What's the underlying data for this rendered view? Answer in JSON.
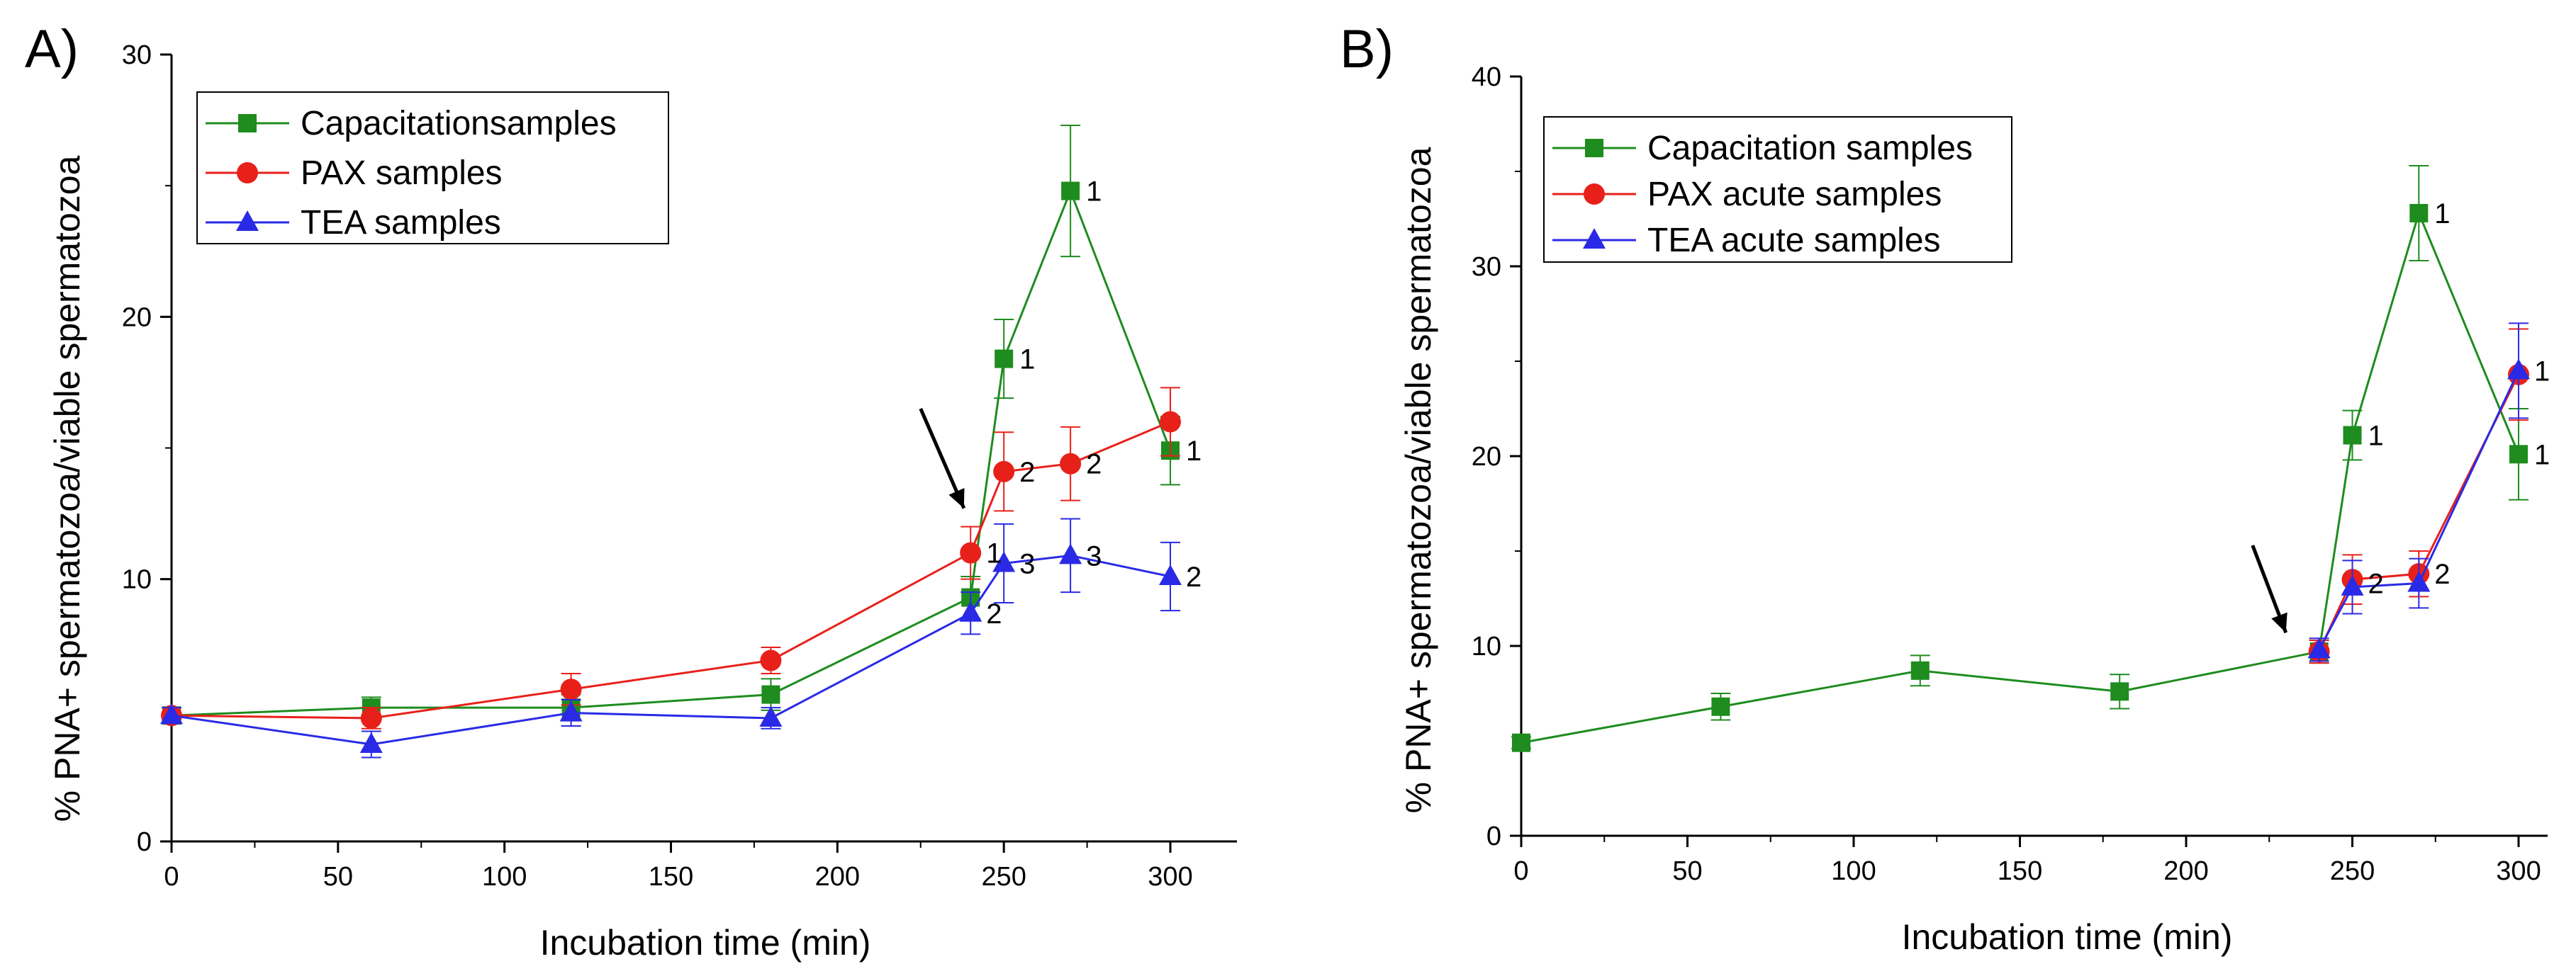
{
  "chart_data": [
    {
      "panel_label": "A)",
      "type": "line",
      "title": "",
      "xlabel": "Incubation time (min)",
      "ylabel": "%  PNA+ spermatozoa/viable spermatozoa",
      "xlim": [
        0,
        320
      ],
      "ylim": [
        0,
        30
      ],
      "xticks": [
        0,
        50,
        100,
        150,
        200,
        250,
        300
      ],
      "yticks": [
        0,
        10,
        20,
        30
      ],
      "legend_position": "top-left",
      "series": [
        {
          "name": "Capacitationsamples",
          "color": "#1e8c1e",
          "marker": "square",
          "x": [
            0,
            60,
            120,
            180,
            240,
            250,
            270,
            300
          ],
          "y": [
            4.8,
            5.1,
            5.1,
            5.6,
            9.3,
            18.4,
            24.8,
            14.9
          ],
          "err": [
            0.3,
            0.4,
            0.5,
            0.6,
            0.8,
            1.5,
            2.5,
            1.3
          ]
        },
        {
          "name": "PAX samples",
          "color": "#e8201a",
          "marker": "circle",
          "x": [
            0,
            60,
            120,
            180,
            240,
            250,
            270,
            300
          ],
          "y": [
            4.8,
            4.7,
            5.8,
            6.9,
            11.0,
            14.1,
            14.4,
            16.0
          ],
          "err": [
            0.3,
            0.4,
            0.6,
            0.5,
            1.0,
            1.5,
            1.4,
            1.3
          ]
        },
        {
          "name": "TEA samples",
          "color": "#2a2ae6",
          "marker": "triangle",
          "x": [
            0,
            60,
            120,
            180,
            240,
            250,
            270,
            300
          ],
          "y": [
            4.8,
            3.7,
            4.9,
            4.7,
            8.7,
            10.6,
            10.9,
            10.1
          ],
          "err": [
            0.3,
            0.5,
            0.5,
            0.4,
            0.8,
            1.5,
            1.4,
            1.3
          ]
        }
      ],
      "annotations": [
        {
          "text": "1",
          "x": 270,
          "y": 24.8
        },
        {
          "text": "1",
          "x": 250,
          "y": 18.4
        },
        {
          "text": "1",
          "x": 300,
          "y": 14.9
        },
        {
          "text": "2",
          "x": 250,
          "y": 14.1
        },
        {
          "text": "2",
          "x": 270,
          "y": 14.4
        },
        {
          "text": "1",
          "x": 240,
          "y": 11.0
        },
        {
          "text": "3",
          "x": 250,
          "y": 10.6
        },
        {
          "text": "3",
          "x": 270,
          "y": 10.9
        },
        {
          "text": "2",
          "x": 300,
          "y": 10.1
        },
        {
          "text": "2",
          "x": 240,
          "y": 8.7
        }
      ],
      "arrow": {
        "from": [
          225,
          16.5
        ],
        "to": [
          238,
          12.7
        ]
      }
    },
    {
      "panel_label": "B)",
      "type": "line",
      "title": "",
      "xlabel": "Incubation time (min)",
      "ylabel": "% PNA+ spermatozoa/viable spermatozoa",
      "xlim": [
        0,
        310
      ],
      "ylim": [
        0,
        40
      ],
      "xticks": [
        0,
        50,
        100,
        150,
        200,
        250,
        300
      ],
      "yticks": [
        0,
        10,
        20,
        30,
        40
      ],
      "legend_position": "top-left",
      "series": [
        {
          "name": "Capacitation samples",
          "color": "#1e8c1e",
          "marker": "square",
          "x": [
            0,
            60,
            120,
            180,
            240,
            250,
            270,
            300
          ],
          "y": [
            4.9,
            6.8,
            8.7,
            7.6,
            9.7,
            21.1,
            32.8,
            20.1
          ],
          "err": [
            0.3,
            0.7,
            0.8,
            0.9,
            0.6,
            1.3,
            2.5,
            2.4
          ]
        },
        {
          "name": "PAX acute samples",
          "color": "#e8201a",
          "marker": "circle",
          "x": [
            240,
            250,
            270,
            300
          ],
          "y": [
            9.7,
            13.5,
            13.8,
            24.3
          ],
          "err": [
            0.6,
            1.3,
            1.2,
            2.4
          ]
        },
        {
          "name": "TEA acute samples",
          "color": "#2a2ae6",
          "marker": "triangle",
          "x": [
            240,
            250,
            270,
            300
          ],
          "y": [
            9.8,
            13.1,
            13.3,
            24.5
          ],
          "err": [
            0.6,
            1.4,
            1.3,
            2.5
          ]
        }
      ],
      "annotations": [
        {
          "text": "1",
          "x": 270,
          "y": 32.8
        },
        {
          "text": "1",
          "x": 250,
          "y": 21.1
        },
        {
          "text": "1",
          "x": 300,
          "y": 24.5
        },
        {
          "text": "1",
          "x": 300,
          "y": 20.1
        },
        {
          "text": "2",
          "x": 250,
          "y": 13.3
        },
        {
          "text": "2",
          "x": 270,
          "y": 13.8
        }
      ],
      "arrow": {
        "from": [
          220,
          15.3
        ],
        "to": [
          230,
          10.7
        ]
      }
    }
  ]
}
